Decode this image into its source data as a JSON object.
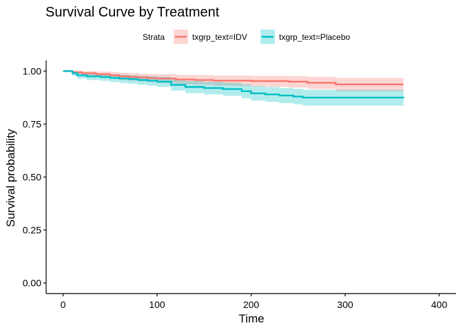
{
  "chart_data": {
    "type": "line",
    "subtype": "step-with-confidence-band",
    "title": "Survival Curve by Treatment",
    "xlabel": "Time",
    "ylabel": "Survival probability",
    "xlim": [
      -18,
      418
    ],
    "ylim": [
      -0.05,
      1.05
    ],
    "xticks": [
      0,
      100,
      200,
      300,
      400
    ],
    "yticks": [
      0.0,
      0.25,
      0.5,
      0.75,
      1.0
    ],
    "ytick_labels": [
      "0.00",
      "0.25",
      "0.50",
      "0.75",
      "1.00"
    ],
    "grid": false,
    "legend": {
      "title": "Strata",
      "position": "top"
    },
    "series": [
      {
        "name": "txgrp_text=IDV",
        "color": "#F8766D",
        "fill": "#F8766D",
        "x": [
          0,
          10,
          20,
          35,
          50,
          60,
          70,
          80,
          90,
          100,
          110,
          120,
          140,
          160,
          180,
          200,
          220,
          240,
          260,
          270,
          290,
          362
        ],
        "y": [
          1.0,
          0.995,
          0.99,
          0.985,
          0.98,
          0.975,
          0.972,
          0.97,
          0.967,
          0.965,
          0.965,
          0.96,
          0.958,
          0.955,
          0.955,
          0.953,
          0.953,
          0.95,
          0.945,
          0.945,
          0.937,
          0.937
        ],
        "lower": [
          1.0,
          0.985,
          0.978,
          0.972,
          0.965,
          0.958,
          0.955,
          0.952,
          0.948,
          0.945,
          0.944,
          0.938,
          0.935,
          0.932,
          0.93,
          0.927,
          0.926,
          0.922,
          0.916,
          0.915,
          0.905,
          0.905
        ],
        "upper": [
          1.0,
          1.0,
          1.0,
          0.998,
          0.995,
          0.992,
          0.99,
          0.988,
          0.986,
          0.985,
          0.985,
          0.982,
          0.981,
          0.979,
          0.979,
          0.978,
          0.978,
          0.976,
          0.973,
          0.973,
          0.968,
          0.968
        ]
      },
      {
        "name": "txgrp_text=Placebo",
        "color": "#00BFC4",
        "fill": "#00BFC4",
        "x": [
          0,
          10,
          15,
          25,
          40,
          50,
          60,
          70,
          80,
          90,
          100,
          115,
          130,
          150,
          170,
          190,
          200,
          215,
          230,
          245,
          255,
          362
        ],
        "y": [
          1.0,
          0.99,
          0.98,
          0.975,
          0.972,
          0.968,
          0.965,
          0.962,
          0.958,
          0.955,
          0.95,
          0.935,
          0.925,
          0.92,
          0.915,
          0.905,
          0.895,
          0.89,
          0.885,
          0.88,
          0.875,
          0.873
        ],
        "lower": [
          1.0,
          0.978,
          0.965,
          0.958,
          0.954,
          0.948,
          0.944,
          0.94,
          0.935,
          0.931,
          0.925,
          0.908,
          0.896,
          0.89,
          0.884,
          0.872,
          0.861,
          0.855,
          0.849,
          0.843,
          0.837,
          0.835
        ],
        "upper": [
          1.0,
          1.0,
          0.995,
          0.99,
          0.988,
          0.985,
          0.983,
          0.981,
          0.978,
          0.976,
          0.973,
          0.961,
          0.953,
          0.949,
          0.945,
          0.937,
          0.929,
          0.925,
          0.92,
          0.916,
          0.912,
          0.91
        ]
      }
    ]
  }
}
